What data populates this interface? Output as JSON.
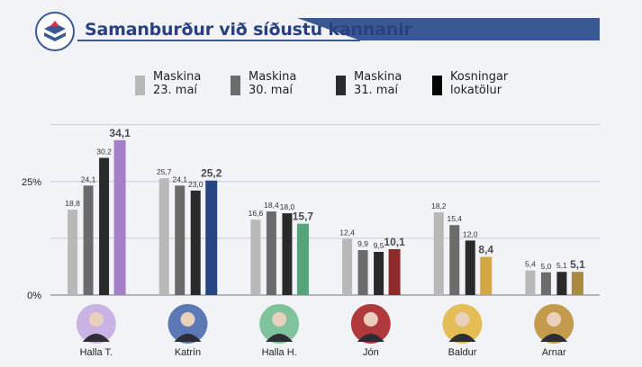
{
  "header": {
    "title": "Samanburður við síðustu kannanir",
    "logo_icon": "ballot-box-icon",
    "accent_color": "#3a5894"
  },
  "chart_data": {
    "type": "bar",
    "title": "Samanburður við síðustu kannanir",
    "xlabel": "",
    "ylabel": "",
    "ylim": [
      0,
      37
    ],
    "y_ticks": [
      {
        "value": 0,
        "label": "0%"
      },
      {
        "value": 25,
        "label": "25%"
      }
    ],
    "grid": true,
    "legend_position": "top",
    "categories": [
      "Halla T.",
      "Katrín",
      "Halla H.",
      "Jón",
      "Baldur",
      "Arnar"
    ],
    "series": [
      {
        "name": "Maskina 23. maí",
        "color": "#b8b8b8",
        "values": [
          18.8,
          25.7,
          16.6,
          12.4,
          18.2,
          5.4
        ],
        "labels": [
          "18,8",
          "25,7",
          "16,6",
          "12,4",
          "18,2",
          "5,4"
        ]
      },
      {
        "name": "Maskina 30. maí",
        "color": "#6b6b6b",
        "values": [
          24.1,
          24.1,
          18.4,
          9.9,
          15.4,
          5.0
        ],
        "labels": [
          "24,1",
          "24,1",
          "18,4",
          "9,9",
          "15,4",
          "5,0"
        ]
      },
      {
        "name": "Maskina 31. maí",
        "color": "#2a2a2a",
        "values": [
          30.2,
          23.0,
          18.0,
          9.5,
          12.0,
          5.1
        ],
        "labels": [
          "30,2",
          "23,0",
          "18,0",
          "9,5",
          "12,0",
          "5,1"
        ]
      },
      {
        "name": "Kosningar lokatölur",
        "color": "#050505",
        "values": [
          34.1,
          25.2,
          15.7,
          10.1,
          8.4,
          5.1
        ],
        "labels": [
          "34,1",
          "25,2",
          "15,7",
          "10,1",
          "8,4",
          "5,1"
        ]
      }
    ],
    "final_bar_colors": [
      "#a57fc7",
      "#27467f",
      "#55a47b",
      "#8f2a2c",
      "#d3a743",
      "#a98a3f"
    ]
  },
  "legend": [
    {
      "line1": "Maskina",
      "line2": "23. maí",
      "color": "#b8b8b8"
    },
    {
      "line1": "Maskina",
      "line2": "30. maí",
      "color": "#6b6b6b"
    },
    {
      "line1": "Maskina",
      "line2": "31. maí",
      "color": "#2a2a2a"
    },
    {
      "line1": "Kosningar",
      "line2": "lokatölur",
      "color": "#050505"
    }
  ],
  "candidates": [
    {
      "name": "Halla T.",
      "avatar_bg": "#c9b3e4",
      "icon": "candidate-portrait-icon"
    },
    {
      "name": "Katrín",
      "avatar_bg": "#5c79b6",
      "icon": "candidate-portrait-icon"
    },
    {
      "name": "Halla H.",
      "avatar_bg": "#7fc39d",
      "icon": "candidate-portrait-icon"
    },
    {
      "name": "Jón",
      "avatar_bg": "#b0393b",
      "icon": "candidate-portrait-icon"
    },
    {
      "name": "Baldur",
      "avatar_bg": "#e5bd57",
      "icon": "candidate-portrait-icon"
    },
    {
      "name": "Arnar",
      "avatar_bg": "#c49a4c",
      "icon": "candidate-portrait-icon"
    }
  ]
}
